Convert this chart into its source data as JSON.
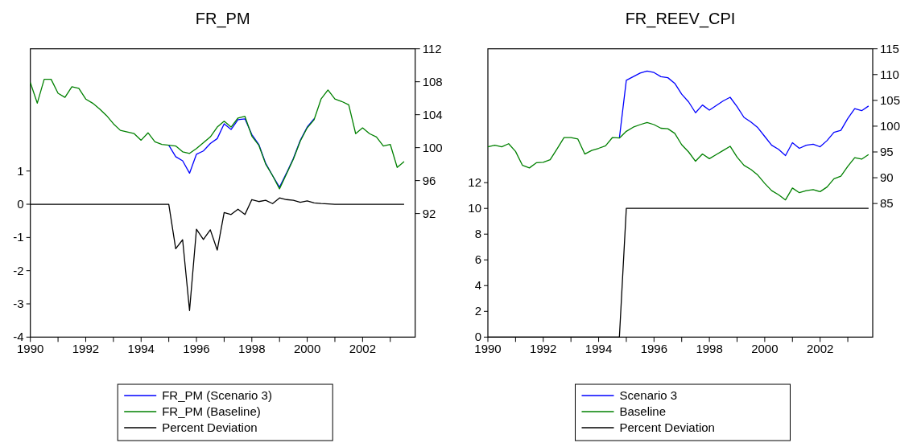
{
  "chart_data": [
    {
      "type": "line",
      "title": "FR_PM",
      "x": [
        1990,
        1990.25,
        1990.5,
        1990.75,
        1991,
        1991.25,
        1991.5,
        1991.75,
        1992,
        1992.25,
        1992.5,
        1992.75,
        1993,
        1993.25,
        1993.5,
        1993.75,
        1994,
        1994.25,
        1994.5,
        1994.75,
        1995,
        1995.25,
        1995.5,
        1995.75,
        1996,
        1996.25,
        1996.5,
        1996.75,
        1997,
        1997.25,
        1997.5,
        1997.75,
        1998,
        1998.25,
        1998.5,
        1998.75,
        1999,
        1999.25,
        1999.5,
        1999.75,
        2000,
        2000.25,
        2000.5,
        2000.75,
        2001,
        2001.25,
        2001.5,
        2001.75,
        2002,
        2002.25,
        2002.5,
        2002.75,
        2003,
        2003.25,
        2003.5
      ],
      "series": [
        {
          "name": "FR_PM (Scenario 3)",
          "color": "#0000ff",
          "axis": "y2",
          "values": [
            null,
            null,
            null,
            null,
            null,
            null,
            null,
            null,
            null,
            null,
            null,
            null,
            null,
            null,
            null,
            null,
            null,
            null,
            null,
            null,
            100.3,
            98.9,
            98.4,
            96.9,
            99.2,
            99.6,
            100.5,
            101.1,
            102.9,
            102.2,
            103.4,
            103.5,
            101.6,
            100.4,
            98.1,
            96.6,
            95.2,
            96.9,
            98.7,
            100.9,
            102.5,
            103.5,
            null,
            null,
            null,
            null,
            null,
            null,
            null,
            null,
            null,
            null,
            null,
            null,
            null
          ]
        },
        {
          "name": "FR_PM (Baseline)",
          "color": "#008000",
          "axis": "y2",
          "values": [
            107.9,
            105.4,
            108.3,
            108.3,
            106.6,
            106.1,
            107.4,
            107.2,
            105.9,
            105.4,
            104.7,
            103.9,
            102.9,
            102.1,
            101.9,
            101.7,
            100.9,
            101.8,
            100.7,
            100.4,
            100.3,
            100.2,
            99.5,
            99.3,
            99.9,
            100.6,
            101.3,
            102.5,
            103.2,
            102.5,
            103.6,
            103.8,
            101.4,
            100.3,
            98.0,
            96.6,
            95.0,
            96.8,
            98.6,
            100.8,
            102.4,
            103.4,
            105.9,
            107.0,
            105.9,
            105.6,
            105.2,
            101.7,
            102.4,
            101.7,
            101.3,
            100.2,
            100.4,
            97.6,
            98.3
          ]
        },
        {
          "name": "Percent Deviation",
          "color": "#000000",
          "axis": "y",
          "values": [
            0,
            0,
            0,
            0,
            0,
            0,
            0,
            0,
            0,
            0,
            0,
            0,
            0,
            0,
            0,
            0,
            0,
            0,
            0,
            0,
            0,
            -1.34,
            -1.07,
            -3.2,
            -0.75,
            -1.06,
            -0.77,
            -1.38,
            -0.25,
            -0.31,
            -0.15,
            -0.31,
            0.14,
            0.08,
            0.12,
            0.02,
            0.19,
            0.14,
            0.12,
            0.06,
            0.1,
            0.04,
            0.02,
            0.01,
            0,
            0,
            0,
            0,
            0,
            0,
            0,
            0,
            0,
            0,
            0
          ]
        }
      ],
      "xlim": [
        1990,
        2003.9
      ],
      "xticks": [
        1990,
        {
          "value": 1991,
          "label": null
        },
        1992,
        {
          "value": 1993,
          "label": null
        },
        1994,
        {
          "value": 1995,
          "label": null
        },
        1996,
        {
          "value": 1997,
          "label": null
        },
        1998,
        {
          "value": 1999,
          "label": null
        },
        2000,
        {
          "value": 2001,
          "label": null
        },
        2002,
        {
          "value": 2003,
          "label": null
        }
      ],
      "ylim": [
        -4,
        4.68
      ],
      "yticks": [
        -4,
        -3,
        -2,
        -1,
        0,
        1
      ],
      "y2lim": [
        77,
        112
      ],
      "y2ticks": [
        92,
        96,
        100,
        104,
        108,
        112
      ],
      "grid": false,
      "legend": "bottom"
    },
    {
      "type": "line",
      "title": "FR_REEV_CPI",
      "x": [
        1990,
        1990.25,
        1990.5,
        1990.75,
        1991,
        1991.25,
        1991.5,
        1991.75,
        1992,
        1992.25,
        1992.5,
        1992.75,
        1993,
        1993.25,
        1993.5,
        1993.75,
        1994,
        1994.25,
        1994.5,
        1994.75,
        1995,
        1995.25,
        1995.5,
        1995.75,
        1996,
        1996.25,
        1996.5,
        1996.75,
        1997,
        1997.25,
        1997.5,
        1997.75,
        1998,
        1998.25,
        1998.5,
        1998.75,
        1999,
        1999.25,
        1999.5,
        1999.75,
        2000,
        2000.25,
        2000.5,
        2000.75,
        2001,
        2001.25,
        2001.5,
        2001.75,
        2002,
        2002.25,
        2002.5,
        2002.75,
        2003,
        2003.25,
        2003.5,
        2003.75
      ],
      "series": [
        {
          "name": "Scenario 3",
          "color": "#0000ff",
          "axis": "y2",
          "values": [
            null,
            null,
            null,
            null,
            null,
            null,
            null,
            null,
            null,
            null,
            null,
            null,
            null,
            null,
            null,
            null,
            null,
            null,
            null,
            97.7,
            108.9,
            109.6,
            110.3,
            110.7,
            110.4,
            109.6,
            109.4,
            108.3,
            106.2,
            104.7,
            102.6,
            104.1,
            103.1,
            104.0,
            104.9,
            105.6,
            103.8,
            101.7,
            100.8,
            99.7,
            98.0,
            96.3,
            95.5,
            94.3,
            96.8,
            95.7,
            96.3,
            96.5,
            96.0,
            97.2,
            98.8,
            99.2,
            101.5,
            103.4,
            103.0,
            103.9
          ]
        },
        {
          "name": "Baseline",
          "color": "#008000",
          "axis": "y2",
          "values": [
            96.0,
            96.3,
            96.0,
            96.6,
            95.1,
            92.4,
            91.9,
            92.9,
            93.0,
            93.5,
            95.6,
            97.8,
            97.8,
            97.5,
            94.6,
            95.3,
            95.7,
            96.2,
            97.8,
            97.7,
            99.0,
            99.8,
            100.3,
            100.7,
            100.3,
            99.6,
            99.5,
            98.6,
            96.4,
            95.0,
            93.2,
            94.6,
            93.7,
            94.5,
            95.3,
            96.1,
            94.0,
            92.4,
            91.6,
            90.5,
            88.9,
            87.5,
            86.7,
            85.7,
            88.0,
            87.1,
            87.5,
            87.7,
            87.3,
            88.2,
            89.8,
            90.3,
            92.2,
            93.9,
            93.6,
            94.5
          ]
        },
        {
          "name": "Percent Deviation",
          "color": "#000000",
          "axis": "y",
          "values": [
            0,
            0,
            0,
            0,
            0,
            0,
            0,
            0,
            0,
            0,
            0,
            0,
            0,
            0,
            0,
            0,
            0,
            0,
            0,
            0,
            10,
            10,
            10,
            10,
            10,
            10,
            10,
            10,
            10,
            10,
            10,
            10,
            10,
            10,
            10,
            10,
            10,
            10,
            10,
            10,
            10,
            10,
            10,
            10,
            10,
            10,
            10,
            10,
            10,
            10,
            10,
            10,
            10,
            10,
            10,
            10
          ]
        }
      ],
      "xlim": [
        1990,
        2003.9
      ],
      "xticks": [
        1990,
        {
          "value": 1991,
          "label": null
        },
        1992,
        {
          "value": 1993,
          "label": null
        },
        1994,
        {
          "value": 1995,
          "label": null
        },
        1996,
        {
          "value": 1997,
          "label": null
        },
        1998,
        {
          "value": 1999,
          "label": null
        },
        2000,
        {
          "value": 2001,
          "label": null
        },
        2002,
        {
          "value": 2003,
          "label": null
        }
      ],
      "ylim": [
        0,
        22.4
      ],
      "yticks": [
        0,
        2,
        4,
        6,
        8,
        10,
        12
      ],
      "y2lim": [
        59.1,
        115
      ],
      "y2ticks": [
        85,
        90,
        95,
        100,
        105,
        110,
        115
      ],
      "grid": false,
      "legend": "bottom"
    }
  ]
}
